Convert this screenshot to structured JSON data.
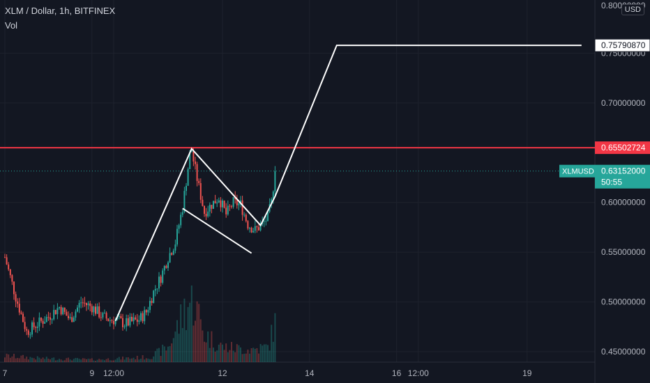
{
  "header": {
    "symbol_line": "XLM / Dollar, 1h, BITFINEX",
    "indicator": "Vol",
    "currency": "USD"
  },
  "colors": {
    "background": "#131722",
    "up": "#26a69a",
    "down": "#ef5350",
    "annotation": "#ffffff",
    "resistance": "#f23645",
    "axis_text": "#b2b5be"
  },
  "chart_data": {
    "type": "candlestick",
    "ylim": [
      0.4395,
      0.8035
    ],
    "y_ticks": [
      0.45,
      0.5,
      0.55,
      0.6,
      0.7,
      0.75
    ],
    "y_tick_labels": [
      "0.45000000",
      "0.50000000",
      "0.55000000",
      "0.60000000",
      "0.70000000",
      "0.75000000"
    ],
    "y_top_partial_label": "0.80000000",
    "x_ticks": [
      {
        "label": "7",
        "t": 0
      },
      {
        "label": "9",
        "t": 48
      },
      {
        "label": "12:00",
        "t": 60
      },
      {
        "label": "12",
        "t": 120
      },
      {
        "label": "14",
        "t": 168
      },
      {
        "label": "16",
        "t": 216
      },
      {
        "label": "12:00",
        "t": 228
      },
      {
        "label": "19",
        "t": 288
      }
    ],
    "last_t": 149,
    "price_path": [
      [
        0,
        0.545
      ],
      [
        6,
        0.505
      ],
      [
        12,
        0.47
      ],
      [
        18,
        0.478
      ],
      [
        24,
        0.485
      ],
      [
        30,
        0.495
      ],
      [
        36,
        0.482
      ],
      [
        42,
        0.5
      ],
      [
        48,
        0.495
      ],
      [
        54,
        0.485
      ],
      [
        58,
        0.482
      ],
      [
        62,
        0.482
      ],
      [
        66,
        0.478
      ],
      [
        70,
        0.48
      ],
      [
        74,
        0.482
      ],
      [
        78,
        0.49
      ],
      [
        82,
        0.51
      ],
      [
        86,
        0.525
      ],
      [
        90,
        0.545
      ],
      [
        94,
        0.56
      ],
      [
        98,
        0.595
      ],
      [
        102,
        0.648
      ],
      [
        103,
        0.652
      ],
      [
        104,
        0.642
      ],
      [
        107,
        0.615
      ],
      [
        110,
        0.59
      ],
      [
        114,
        0.598
      ],
      [
        118,
        0.605
      ],
      [
        122,
        0.588
      ],
      [
        126,
        0.6
      ],
      [
        130,
        0.598
      ],
      [
        134,
        0.578
      ],
      [
        138,
        0.572
      ],
      [
        142,
        0.578
      ],
      [
        145,
        0.585
      ],
      [
        147,
        0.6
      ],
      [
        149,
        0.6315
      ]
    ],
    "volume_path": [
      [
        0,
        0.05
      ],
      [
        20,
        0.03
      ],
      [
        50,
        0.02
      ],
      [
        80,
        0.04
      ],
      [
        90,
        0.12
      ],
      [
        96,
        0.3
      ],
      [
        100,
        0.45
      ],
      [
        104,
        0.5
      ],
      [
        110,
        0.22
      ],
      [
        120,
        0.12
      ],
      [
        135,
        0.1
      ],
      [
        145,
        0.12
      ],
      [
        149,
        0.3
      ]
    ],
    "annotations": {
      "pattern_path": [
        [
          61,
          0.481
        ],
        [
          103,
          0.654
        ],
        [
          141,
          0.577
        ],
        [
          149,
          0.606
        ],
        [
          183,
          0.7579
        ],
        [
          318,
          0.7579
        ]
      ],
      "channel_lower": [
        [
          98,
          0.594
        ],
        [
          136,
          0.549
        ]
      ],
      "resistance_level": 0.65502724
    },
    "price_labels": [
      {
        "text": "0.75790870",
        "value": 0.7579087,
        "style": "white"
      },
      {
        "text": "0.65502724",
        "value": 0.65502724,
        "style": "red"
      },
      {
        "symbol": "XLMUSD",
        "text": "0.63152000",
        "countdown": "50:55",
        "value": 0.63152,
        "style": "teal"
      }
    ]
  }
}
